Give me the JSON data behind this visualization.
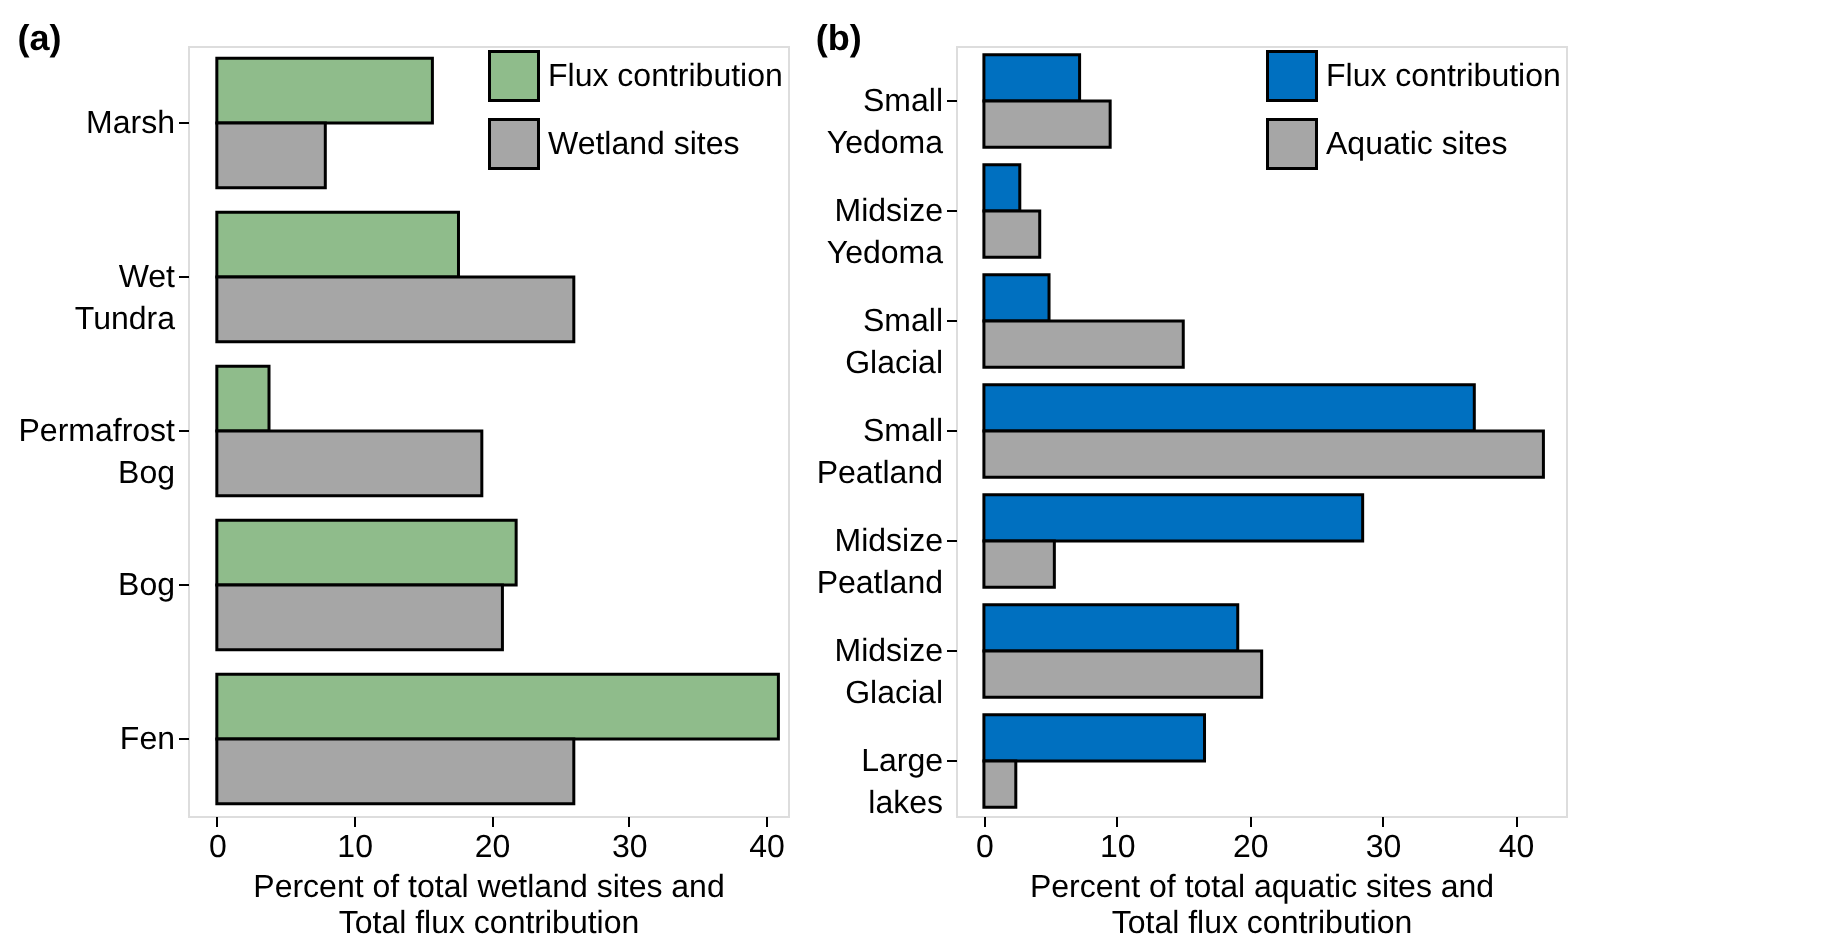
{
  "chart_data": [
    {
      "type": "bar",
      "orientation": "horizontal",
      "title": "(a)",
      "categories": [
        "Marsh",
        "Wet Tundra",
        "Permafrost Bog",
        "Bog",
        "Fen"
      ],
      "xlabel": "Percent of total wetland sites and\nTotal flux contribution",
      "xlim": [
        -2.1,
        41.6
      ],
      "xticks": [
        0,
        10,
        20,
        30,
        40
      ],
      "grid": false,
      "legend": "top right",
      "series": [
        {
          "name": "Flux contribution",
          "color": "#8fbc8b",
          "values": [
            15.7,
            17.6,
            3.8,
            21.8,
            40.9
          ]
        },
        {
          "name": "Wetland sites",
          "color": "#a6a6a6",
          "values": [
            7.9,
            26.0,
            19.3,
            20.8,
            26.0
          ]
        }
      ]
    },
    {
      "type": "bar",
      "orientation": "horizontal",
      "title": "(b)",
      "categories": [
        "Small Yedoma",
        "Midsize Yedoma",
        "Small Glacial",
        "Small Peatland",
        "Midsize Peatland",
        "Midsize Glacial",
        "Large lakes"
      ],
      "xlabel": "Percent of total aquatic sites and\nTotal flux contribution",
      "xlim": [
        -2.1,
        43.8
      ],
      "xticks": [
        0,
        10,
        20,
        30,
        40
      ],
      "grid": false,
      "legend": "top right",
      "series": [
        {
          "name": "Flux contribution",
          "color": "#0070c0",
          "values": [
            7.2,
            2.7,
            4.9,
            36.9,
            28.5,
            19.1,
            16.6
          ]
        },
        {
          "name": "Aquatic sites",
          "color": "#a6a6a6",
          "values": [
            9.5,
            4.2,
            15.0,
            42.1,
            5.3,
            20.9,
            2.4
          ]
        }
      ]
    }
  ]
}
